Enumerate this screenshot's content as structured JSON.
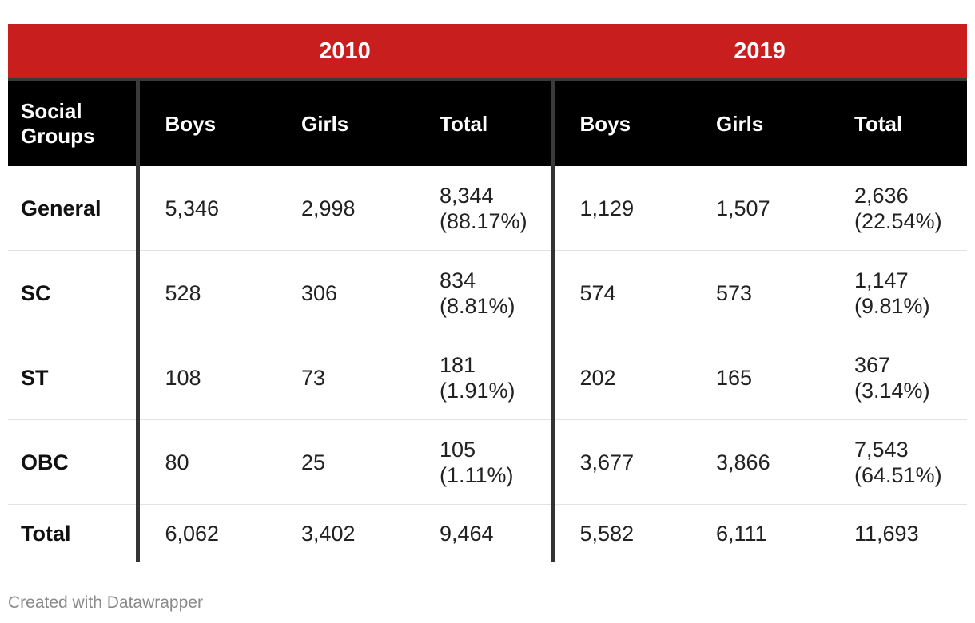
{
  "chart_data": {
    "type": "table",
    "year_headers": [
      "2010",
      "2019"
    ],
    "columns": [
      "Social\nGroups",
      "Boys",
      "Girls",
      "Total",
      "Boys",
      "Girls",
      "Total"
    ],
    "rows": [
      {
        "group": "General",
        "cells": [
          "5,346",
          "2,998",
          "8,344\n(88.17%)",
          "1,129",
          "1,507",
          "2,636\n(22.54%)"
        ]
      },
      {
        "group": "SC",
        "cells": [
          "528",
          "306",
          "834\n(8.81%)",
          "574",
          "573",
          "1,147\n(9.81%)"
        ]
      },
      {
        "group": "ST",
        "cells": [
          "108",
          "73",
          "181\n(1.91%)",
          "202",
          "165",
          "367\n(3.14%)"
        ]
      },
      {
        "group": "OBC",
        "cells": [
          "80",
          "25",
          "105\n(1.11%)",
          "3,677",
          "3,866",
          "7,543\n(64.51%)"
        ]
      },
      {
        "group": "Total",
        "cells": [
          "6,062",
          "3,402",
          "9,464",
          "5,582",
          "6,111",
          "11,693"
        ]
      }
    ],
    "colors": {
      "banner": "#c81e1e",
      "header": "#000000",
      "separator": "#333333"
    }
  },
  "footer": "Created with Datawrapper"
}
